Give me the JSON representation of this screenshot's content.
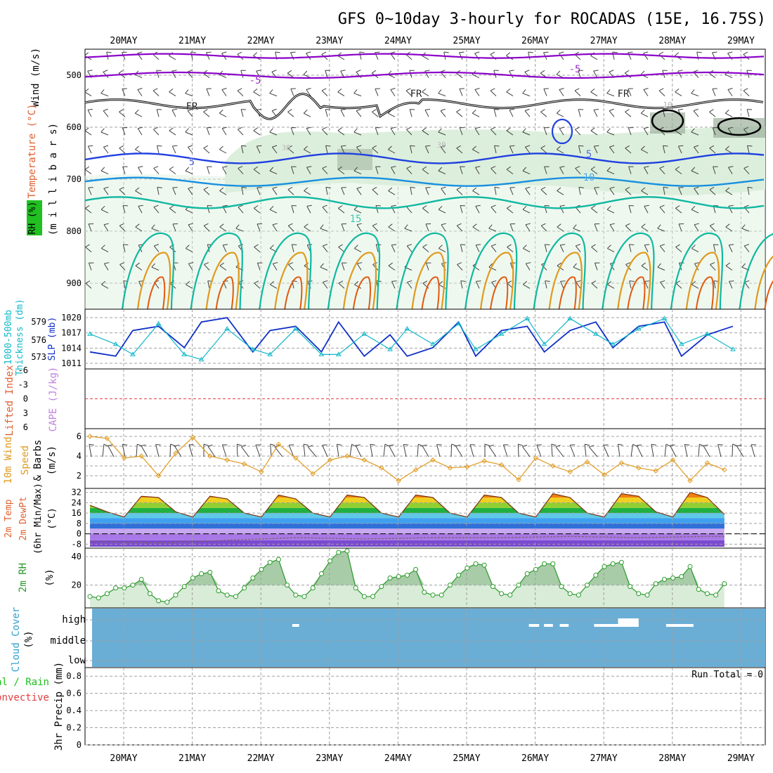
{
  "title": "GFS 0~10day 3-hourly for ROCADAS (15E, 16.75S)",
  "dates": [
    "20MAY",
    "21MAY",
    "22MAY",
    "23MAY",
    "24MAY",
    "25MAY",
    "26MAY",
    "27MAY",
    "28MAY",
    "29MAY"
  ],
  "colors": {
    "axis": "#000000",
    "grid": "#a0a0a0",
    "purple": "#8a00c8",
    "black_contour": "#000000",
    "blue": "#2040e0",
    "lightblue": "#1890e0",
    "teal": "#10b8a0",
    "orange": "#e09a20",
    "darkorange": "#e05a10",
    "rh_fill": "#dcefdc",
    "rh_fill_dark": "#9cb09c",
    "slp": "#1030c8",
    "thickness": "#10b8c8",
    "li_zero": "#e04040",
    "wind": "#e09a20",
    "rh2m": "#2a9a2a",
    "rh2m_fill": "#d8ecd8",
    "cloud": "#6aaed6",
    "cloud_cell": "#ffffff"
  },
  "panels": {
    "upper": {
      "left_labels": [
        "Wind (m/s)",
        "Temperature (°C)",
        "RH (%)",
        "(m i l l i b a r s)"
      ],
      "axis_ticks": [
        "500",
        "600",
        "700",
        "800",
        "900"
      ],
      "contour_labels": [
        "-5",
        "-5",
        "FR",
        "FR",
        "FR",
        "5",
        "5",
        "10",
        "15",
        "30",
        "30",
        "10"
      ]
    },
    "thickness": {
      "left_labels": [
        "1000-500mb",
        "Thickness (dm)",
        "SLP (mb)"
      ],
      "thickness_ticks": [
        "579",
        "576",
        "573"
      ],
      "slp_ticks": [
        "1020",
        "1017",
        "1014",
        "1011"
      ]
    },
    "lifted": {
      "left_labels": [
        "Lifted Index",
        "CAPE (J/kg)"
      ],
      "axis_ticks": [
        "-6",
        "-3",
        "0",
        "3",
        "6"
      ]
    },
    "wind10": {
      "left_labels": [
        "10m Wind",
        "Speed",
        "& Barbs",
        "(m/s)"
      ],
      "axis_ticks": [
        "6",
        "4",
        "2"
      ]
    },
    "temp2m": {
      "left_labels": [
        "2m Temp",
        "2m DewPt",
        "(6hr Min/Max)",
        "(°C)"
      ],
      "axis_ticks": [
        "32",
        "24",
        "16",
        "8",
        "0",
        "-8"
      ]
    },
    "rh2m": {
      "left_labels": [
        "2m RH",
        "(%)"
      ],
      "axis_ticks": [
        "40",
        "20"
      ]
    },
    "cloud": {
      "left_labels": [
        "Cloud Cover",
        "(%)"
      ],
      "levels": [
        "high",
        "middle",
        "low"
      ]
    },
    "precip": {
      "left_labels": [
        "Total / Rain",
        "Convective",
        "3hr Precip (mm)"
      ],
      "axis_ticks": [
        "0.8",
        "0.6",
        "0.4",
        "0.2",
        "0"
      ],
      "run_total": "Run Total = 0"
    }
  },
  "chart_data": [
    {
      "type": "line",
      "name": "SLP (mb)",
      "ylim": [
        1010,
        1022
      ],
      "x_days": [
        0,
        0.375,
        0.625,
        1.0,
        1.375,
        1.625,
        2.0,
        2.375,
        2.625,
        3.0,
        3.375,
        3.625,
        4.0,
        4.375,
        4.625,
        5.0,
        5.375,
        5.625,
        6.0,
        6.375,
        6.625,
        7.0,
        7.375,
        7.625,
        8.0,
        8.375,
        8.625,
        9.0,
        9.375
      ],
      "values": [
        1013,
        1012,
        1018,
        1019,
        1014,
        1020,
        1021,
        1013,
        1018,
        1019,
        1013,
        1020,
        1012,
        1017,
        1012,
        1014,
        1020,
        1012,
        1018,
        1019,
        1013,
        1018,
        1020,
        1014,
        1019,
        1020,
        1012,
        1017,
        1019
      ]
    },
    {
      "type": "line",
      "name": "1000-500mb Thickness (dm)",
      "ylim": [
        571,
        581
      ],
      "x_days": [
        0,
        0.375,
        0.625,
        1.0,
        1.375,
        1.625,
        2.0,
        2.375,
        2.625,
        3.0,
        3.375,
        3.625,
        4.0,
        4.375,
        4.625,
        5.0,
        5.375,
        5.625,
        6.0,
        6.375,
        6.625,
        7.0,
        7.375,
        7.625,
        8.0,
        8.375,
        8.625,
        9.0,
        9.375
      ],
      "values": [
        577,
        575,
        573,
        579,
        573,
        572,
        578,
        574,
        573,
        578,
        573,
        573,
        577,
        574,
        578,
        575,
        579,
        574,
        577,
        580,
        575,
        580,
        577,
        575,
        578,
        580,
        575,
        577,
        574
      ]
    },
    {
      "type": "line",
      "name": "10m Wind Speed (m/s)",
      "ylim": [
        1,
        6.5
      ],
      "x_days": [
        0,
        0.25,
        0.5,
        0.75,
        1.0,
        1.25,
        1.5,
        1.75,
        2.0,
        2.25,
        2.5,
        2.75,
        3.0,
        3.25,
        3.5,
        3.75,
        4.0,
        4.25,
        4.5,
        4.75,
        5.0,
        5.25,
        5.5,
        5.75,
        6.0,
        6.25,
        6.5,
        6.75,
        7.0,
        7.25,
        7.5,
        7.75,
        8.0,
        8.25,
        8.5,
        8.75,
        9.0,
        9.25
      ],
      "values": [
        6,
        5.8,
        3.8,
        4.0,
        2.0,
        4.3,
        5.9,
        4.0,
        3.6,
        3.2,
        2.4,
        5.2,
        3.8,
        2.2,
        3.6,
        4.0,
        3.6,
        2.8,
        1.5,
        2.6,
        3.6,
        2.8,
        2.9,
        3.5,
        3.1,
        1.6,
        3.8,
        3.0,
        2.4,
        3.4,
        2.1,
        3.3,
        2.8,
        2.5,
        3.6,
        1.5,
        3.3,
        2.6
      ]
    },
    {
      "type": "area",
      "name": "2m Temp (°C)",
      "ylim": [
        -10,
        34
      ],
      "x_days": [
        0,
        0.25,
        0.5,
        0.75,
        1.0,
        1.25,
        1.5,
        1.75,
        2.0,
        2.25,
        2.5,
        2.75,
        3.0,
        3.25,
        3.5,
        3.75,
        4.0,
        4.25,
        4.5,
        4.75,
        5.0,
        5.25,
        5.5,
        5.75,
        6.0,
        6.25,
        6.5,
        6.75,
        7.0,
        7.25,
        7.5,
        7.75,
        8.0,
        8.25,
        8.5,
        8.75,
        9.0,
        9.25
      ],
      "values": [
        22,
        17,
        13,
        29,
        28,
        17,
        13,
        29,
        27,
        16,
        13,
        30,
        27,
        16,
        13,
        30,
        28,
        16,
        13,
        30,
        28,
        16,
        13,
        30,
        28,
        16,
        13,
        31,
        28,
        16,
        13,
        31,
        29,
        17,
        13,
        32,
        28,
        15
      ]
    },
    {
      "type": "line",
      "name": "2m DewPt (°C)",
      "x_days": [
        0,
        1,
        2,
        3,
        4,
        5,
        6,
        7,
        8,
        9,
        9.25
      ],
      "values": [
        -6,
        -7,
        -5,
        -3,
        -4,
        -3,
        -3,
        -2,
        -3,
        -2,
        -2
      ]
    },
    {
      "type": "area",
      "name": "2m RH (%)",
      "ylim": [
        5,
        45
      ],
      "x_days": [
        0,
        0.125,
        0.25,
        0.375,
        0.5,
        0.625,
        0.75,
        0.875,
        1.0,
        1.125,
        1.25,
        1.375,
        1.5,
        1.625,
        1.75,
        1.875,
        2.0,
        2.125,
        2.25,
        2.375,
        2.5,
        2.625,
        2.75,
        2.875,
        3.0,
        3.125,
        3.25,
        3.375,
        3.5,
        3.625,
        3.75,
        3.875,
        4.0,
        4.125,
        4.25,
        4.375,
        4.5,
        4.625,
        4.75,
        4.875,
        5.0,
        5.125,
        5.25,
        5.375,
        5.5,
        5.625,
        5.75,
        5.875,
        6.0,
        6.125,
        6.25,
        6.375,
        6.5,
        6.625,
        6.75,
        6.875,
        7.0,
        7.125,
        7.25,
        7.375,
        7.5,
        7.625,
        7.75,
        7.875,
        8.0,
        8.125,
        8.25,
        8.375,
        8.5,
        8.625,
        8.75,
        8.875,
        9.0,
        9.125,
        9.25
      ],
      "values": [
        12,
        11,
        14,
        18,
        18,
        20,
        24,
        14,
        9,
        8,
        13,
        19,
        25,
        28,
        29,
        16,
        13,
        12,
        18,
        25,
        31,
        36,
        38,
        20,
        13,
        12,
        18,
        28,
        37,
        43,
        44,
        18,
        12,
        12,
        19,
        25,
        26,
        27,
        31,
        15,
        13,
        13,
        20,
        27,
        32,
        35,
        34,
        19,
        14,
        13,
        20,
        28,
        31,
        35,
        35,
        19,
        14,
        13,
        20,
        27,
        33,
        35,
        36,
        19,
        14,
        13,
        21,
        24,
        25,
        26,
        33,
        17,
        14,
        13,
        21
      ]
    },
    {
      "type": "heatmap",
      "name": "Cloud Cover (%)",
      "rows": [
        "high",
        "middle",
        "low"
      ],
      "cells": [
        {
          "level": "high",
          "day_start": 2.95,
          "day_end": 3.05
        },
        {
          "level": "high",
          "day_start": 6.4,
          "day_end": 6.55
        },
        {
          "level": "high",
          "day_start": 6.62,
          "day_end": 6.75
        },
        {
          "level": "high",
          "day_start": 6.85,
          "day_end": 6.98
        },
        {
          "level": "high",
          "day_start": 7.35,
          "day_end": 7.7
        },
        {
          "level": "high",
          "day_start": 7.7,
          "day_end": 8.0
        },
        {
          "level": "high",
          "day_start": 8.4,
          "day_end": 8.8
        }
      ]
    },
    {
      "type": "bar",
      "name": "3hr Precip (mm)",
      "ylim": [
        0,
        0.9
      ],
      "values": []
    }
  ]
}
